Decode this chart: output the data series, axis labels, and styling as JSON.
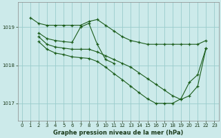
{
  "title": "Graphe pression niveau de la mer (hPa)",
  "bg_color": "#cceaea",
  "plot_bg_color": "#cceaea",
  "grid_color": "#99cccc",
  "line_color": "#1a5c1a",
  "marker_color": "#1a5c1a",
  "xlim": [
    -0.5,
    23.5
  ],
  "ylim": [
    1016.55,
    1019.65
  ],
  "yticks": [
    1017,
    1018,
    1019
  ],
  "xticks": [
    0,
    1,
    2,
    3,
    4,
    5,
    6,
    7,
    8,
    9,
    10,
    11,
    12,
    13,
    14,
    15,
    16,
    17,
    18,
    19,
    20,
    21,
    22,
    23
  ],
  "series": [
    {
      "x": [
        1,
        2,
        3,
        4,
        5,
        6,
        7,
        8,
        9,
        10,
        11,
        12,
        13,
        14,
        15,
        16,
        17,
        18,
        19,
        20,
        21,
        22
      ],
      "y": [
        1019.25,
        1019.1,
        1019.05,
        1019.05,
        1019.05,
        1019.05,
        1019.05,
        1019.15,
        1019.2,
        1019.05,
        1018.9,
        1018.75,
        1018.65,
        1018.6,
        1018.55,
        1018.55,
        1018.55,
        1018.55,
        1018.55,
        1018.55,
        1018.55,
        1018.65
      ]
    },
    {
      "x": [
        2,
        3,
        4,
        5,
        6,
        7,
        8,
        9,
        10,
        11
      ],
      "y": [
        1018.85,
        1018.7,
        1018.65,
        1018.62,
        1018.6,
        1019.0,
        1019.1,
        1018.55,
        1018.15,
        1018.05
      ]
    },
    {
      "x": [
        2,
        3,
        4,
        5,
        6,
        7,
        8,
        9,
        10,
        11,
        12,
        13,
        14,
        15,
        16,
        17,
        18,
        19,
        20,
        21,
        22
      ],
      "y": [
        1018.75,
        1018.55,
        1018.48,
        1018.45,
        1018.42,
        1018.42,
        1018.42,
        1018.35,
        1018.25,
        1018.15,
        1018.05,
        1017.95,
        1017.8,
        1017.65,
        1017.5,
        1017.35,
        1017.2,
        1017.1,
        1017.2,
        1017.45,
        1018.45
      ]
    },
    {
      "x": [
        2,
        3,
        4,
        5,
        6,
        7,
        8,
        9,
        10,
        11,
        12,
        13,
        14,
        15,
        16,
        17,
        18,
        19,
        20,
        21,
        22
      ],
      "y": [
        1018.62,
        1018.42,
        1018.32,
        1018.28,
        1018.22,
        1018.2,
        1018.18,
        1018.1,
        1017.95,
        1017.78,
        1017.62,
        1017.45,
        1017.28,
        1017.12,
        1017.0,
        1017.0,
        1017.0,
        1017.12,
        1017.55,
        1017.75,
        1018.45
      ]
    }
  ]
}
